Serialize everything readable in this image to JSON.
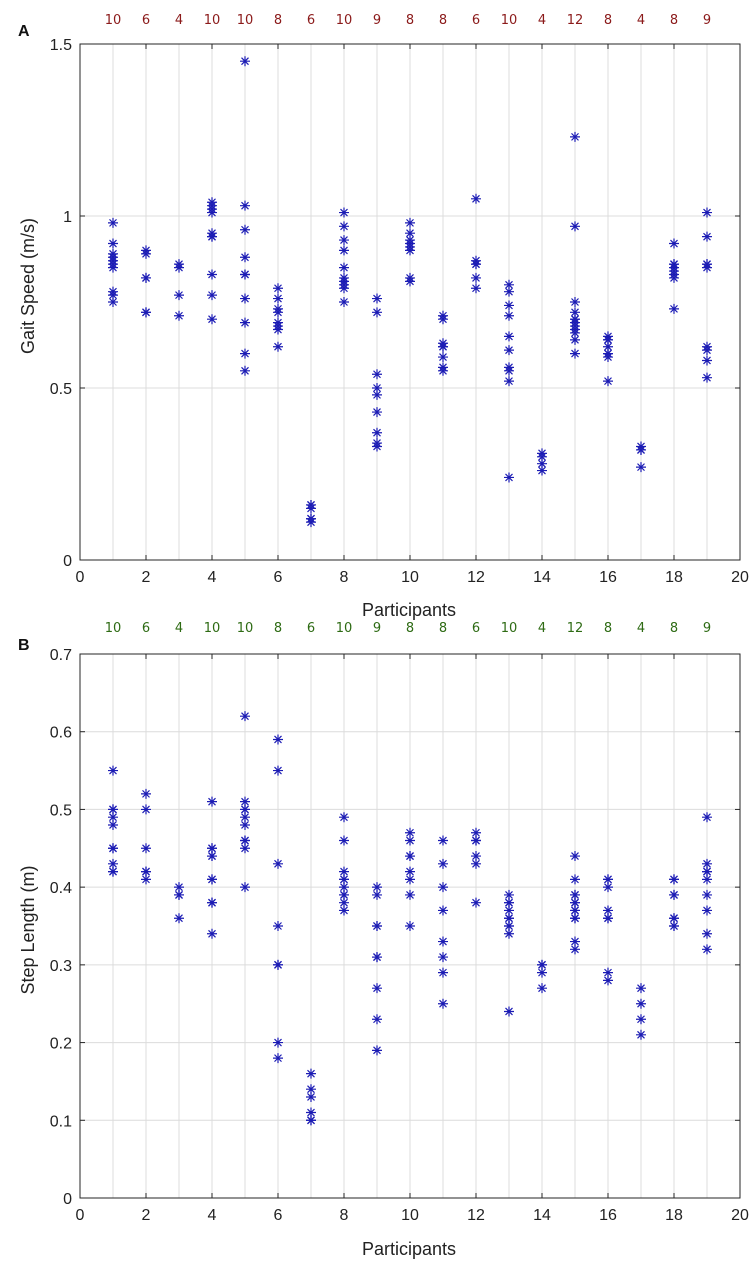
{
  "chart_data": [
    {
      "type": "scatter",
      "panel_label": "A",
      "marker": "asterisk",
      "marker_color": "#1c1cb4",
      "count_color": "#8b1a1a",
      "xlabel": "Participants",
      "ylabel": "Gait Speed (m/s)",
      "xlim": [
        0,
        20
      ],
      "ylim": [
        0,
        1.5
      ],
      "x_ticks": [
        "0",
        "2",
        "4",
        "6",
        "8",
        "10",
        "12",
        "14",
        "16",
        "18",
        "20"
      ],
      "y_ticks": [
        "0",
        "0.5",
        "1",
        "1.5"
      ],
      "grid": true,
      "participant_counts": [
        {
          "x": 1,
          "label": "10"
        },
        {
          "x": 2,
          "label": "6"
        },
        {
          "x": 3,
          "label": "4"
        },
        {
          "x": 4,
          "label": "10"
        },
        {
          "x": 5,
          "label": "10"
        },
        {
          "x": 6,
          "label": "8"
        },
        {
          "x": 7,
          "label": "6"
        },
        {
          "x": 8,
          "label": "10"
        },
        {
          "x": 9,
          "label": "9"
        },
        {
          "x": 10,
          "label": "8"
        },
        {
          "x": 11,
          "label": "8"
        },
        {
          "x": 12,
          "label": "6"
        },
        {
          "x": 13,
          "label": "10"
        },
        {
          "x": 14,
          "label": "4"
        },
        {
          "x": 15,
          "label": "12"
        },
        {
          "x": 16,
          "label": "8"
        },
        {
          "x": 17,
          "label": "4"
        },
        {
          "x": 18,
          "label": "8"
        },
        {
          "x": 19,
          "label": "9"
        }
      ],
      "points": [
        {
          "participant": 1,
          "values": [
            0.98,
            0.92,
            0.89,
            0.87,
            0.86,
            0.85,
            0.78,
            0.77,
            0.75,
            0.88
          ]
        },
        {
          "participant": 2,
          "values": [
            0.9,
            0.89,
            0.82,
            0.82,
            0.72,
            0.72
          ]
        },
        {
          "participant": 3,
          "values": [
            0.86,
            0.85,
            0.77,
            0.71
          ]
        },
        {
          "participant": 4,
          "values": [
            1.04,
            1.02,
            1.01,
            0.95,
            0.94,
            0.83,
            0.77,
            0.7,
            1.03,
            0.94
          ]
        },
        {
          "participant": 5,
          "values": [
            1.45,
            1.03,
            0.96,
            0.88,
            0.83,
            0.76,
            0.69,
            0.6,
            0.55,
            0.83
          ]
        },
        {
          "participant": 6,
          "values": [
            0.79,
            0.76,
            0.73,
            0.72,
            0.69,
            0.68,
            0.67,
            0.62
          ]
        },
        {
          "participant": 7,
          "values": [
            0.16,
            0.16,
            0.15,
            0.12,
            0.11,
            0.12
          ]
        },
        {
          "participant": 8,
          "values": [
            1.01,
            0.97,
            0.93,
            0.9,
            0.85,
            0.81,
            0.8,
            0.79,
            0.75,
            0.82
          ]
        },
        {
          "participant": 9,
          "values": [
            0.76,
            0.72,
            0.54,
            0.5,
            0.48,
            0.43,
            0.37,
            0.34,
            0.33
          ]
        },
        {
          "participant": 10,
          "values": [
            0.98,
            0.95,
            0.93,
            0.92,
            0.91,
            0.9,
            0.82,
            0.81
          ]
        },
        {
          "participant": 11,
          "values": [
            0.71,
            0.7,
            0.63,
            0.62,
            0.59,
            0.56,
            0.55,
            0.62
          ]
        },
        {
          "participant": 12,
          "values": [
            1.05,
            0.87,
            0.86,
            0.82,
            0.79,
            0.86
          ]
        },
        {
          "participant": 13,
          "values": [
            0.8,
            0.78,
            0.74,
            0.71,
            0.65,
            0.61,
            0.56,
            0.55,
            0.52,
            0.24
          ]
        },
        {
          "participant": 14,
          "values": [
            0.31,
            0.3,
            0.28,
            0.26
          ]
        },
        {
          "participant": 15,
          "values": [
            1.23,
            0.97,
            0.75,
            0.72,
            0.7,
            0.69,
            0.68,
            0.67,
            0.64,
            0.6,
            0.7,
            0.66
          ]
        },
        {
          "participant": 16,
          "values": [
            0.65,
            0.64,
            0.62,
            0.6,
            0.59,
            0.52,
            0.64,
            0.6
          ]
        },
        {
          "participant": 17,
          "values": [
            0.33,
            0.32,
            0.32,
            0.27
          ]
        },
        {
          "participant": 18,
          "values": [
            0.92,
            0.86,
            0.85,
            0.84,
            0.83,
            0.82,
            0.73,
            0.86
          ]
        },
        {
          "participant": 19,
          "values": [
            1.01,
            0.94,
            0.86,
            0.85,
            0.62,
            0.61,
            0.58,
            0.53,
            0.86
          ]
        }
      ]
    },
    {
      "type": "scatter",
      "panel_label": "B",
      "marker": "asterisk",
      "marker_color": "#1c1cb4",
      "count_color": "#2e6b14",
      "xlabel": "Participants",
      "ylabel": "Step Length (m)",
      "xlim": [
        0,
        20
      ],
      "ylim": [
        0,
        0.7
      ],
      "x_ticks": [
        "0",
        "2",
        "4",
        "6",
        "8",
        "10",
        "12",
        "14",
        "16",
        "18",
        "20"
      ],
      "y_ticks": [
        "0",
        "0.1",
        "0.2",
        "0.3",
        "0.4",
        "0.5",
        "0.6",
        "0.7"
      ],
      "grid": true,
      "participant_counts": [
        {
          "x": 1,
          "label": "10"
        },
        {
          "x": 2,
          "label": "6"
        },
        {
          "x": 3,
          "label": "4"
        },
        {
          "x": 4,
          "label": "10"
        },
        {
          "x": 5,
          "label": "10"
        },
        {
          "x": 6,
          "label": "8"
        },
        {
          "x": 7,
          "label": "6"
        },
        {
          "x": 8,
          "label": "10"
        },
        {
          "x": 9,
          "label": "9"
        },
        {
          "x": 10,
          "label": "8"
        },
        {
          "x": 11,
          "label": "8"
        },
        {
          "x": 12,
          "label": "6"
        },
        {
          "x": 13,
          "label": "10"
        },
        {
          "x": 14,
          "label": "4"
        },
        {
          "x": 15,
          "label": "12"
        },
        {
          "x": 16,
          "label": "8"
        },
        {
          "x": 17,
          "label": "4"
        },
        {
          "x": 18,
          "label": "8"
        },
        {
          "x": 19,
          "label": "9"
        }
      ],
      "points": [
        {
          "participant": 1,
          "values": [
            0.55,
            0.5,
            0.49,
            0.48,
            0.45,
            0.43,
            0.42,
            0.42,
            0.5,
            0.45
          ]
        },
        {
          "participant": 2,
          "values": [
            0.52,
            0.5,
            0.45,
            0.42,
            0.41,
            0.42
          ]
        },
        {
          "participant": 3,
          "values": [
            0.4,
            0.39,
            0.39,
            0.36
          ]
        },
        {
          "participant": 4,
          "values": [
            0.51,
            0.45,
            0.44,
            0.41,
            0.38,
            0.34,
            0.45,
            0.44,
            0.41,
            0.38
          ]
        },
        {
          "participant": 5,
          "values": [
            0.62,
            0.51,
            0.5,
            0.49,
            0.48,
            0.46,
            0.45,
            0.4,
            0.5,
            0.46
          ]
        },
        {
          "participant": 6,
          "values": [
            0.59,
            0.55,
            0.43,
            0.35,
            0.3,
            0.3,
            0.2,
            0.18
          ]
        },
        {
          "participant": 7,
          "values": [
            0.16,
            0.14,
            0.13,
            0.11,
            0.1,
            0.1
          ]
        },
        {
          "participant": 8,
          "values": [
            0.49,
            0.46,
            0.42,
            0.41,
            0.4,
            0.39,
            0.38,
            0.37,
            0.41,
            0.39
          ]
        },
        {
          "participant": 9,
          "values": [
            0.4,
            0.39,
            0.35,
            0.31,
            0.27,
            0.23,
            0.19,
            0.35,
            0.31
          ]
        },
        {
          "participant": 10,
          "values": [
            0.47,
            0.46,
            0.44,
            0.42,
            0.41,
            0.39,
            0.35,
            0.44
          ]
        },
        {
          "participant": 11,
          "values": [
            0.46,
            0.43,
            0.4,
            0.37,
            0.33,
            0.31,
            0.29,
            0.25
          ]
        },
        {
          "participant": 12,
          "values": [
            0.47,
            0.46,
            0.44,
            0.43,
            0.38,
            0.46
          ]
        },
        {
          "participant": 13,
          "values": [
            0.39,
            0.38,
            0.37,
            0.36,
            0.35,
            0.34,
            0.24,
            0.38,
            0.36,
            0.35
          ]
        },
        {
          "participant": 14,
          "values": [
            0.3,
            0.29,
            0.27,
            0.3
          ]
        },
        {
          "participant": 15,
          "values": [
            0.44,
            0.41,
            0.39,
            0.38,
            0.37,
            0.36,
            0.33,
            0.32,
            0.39,
            0.38,
            0.37,
            0.36
          ]
        },
        {
          "participant": 16,
          "values": [
            0.41,
            0.4,
            0.37,
            0.36,
            0.29,
            0.28,
            0.41,
            0.36
          ]
        },
        {
          "participant": 17,
          "values": [
            0.27,
            0.25,
            0.23,
            0.21
          ]
        },
        {
          "participant": 18,
          "values": [
            0.41,
            0.39,
            0.36,
            0.35,
            0.36,
            0.39,
            0.41,
            0.35
          ]
        },
        {
          "participant": 19,
          "values": [
            0.49,
            0.43,
            0.42,
            0.41,
            0.39,
            0.37,
            0.34,
            0.32,
            0.42
          ]
        }
      ]
    }
  ]
}
